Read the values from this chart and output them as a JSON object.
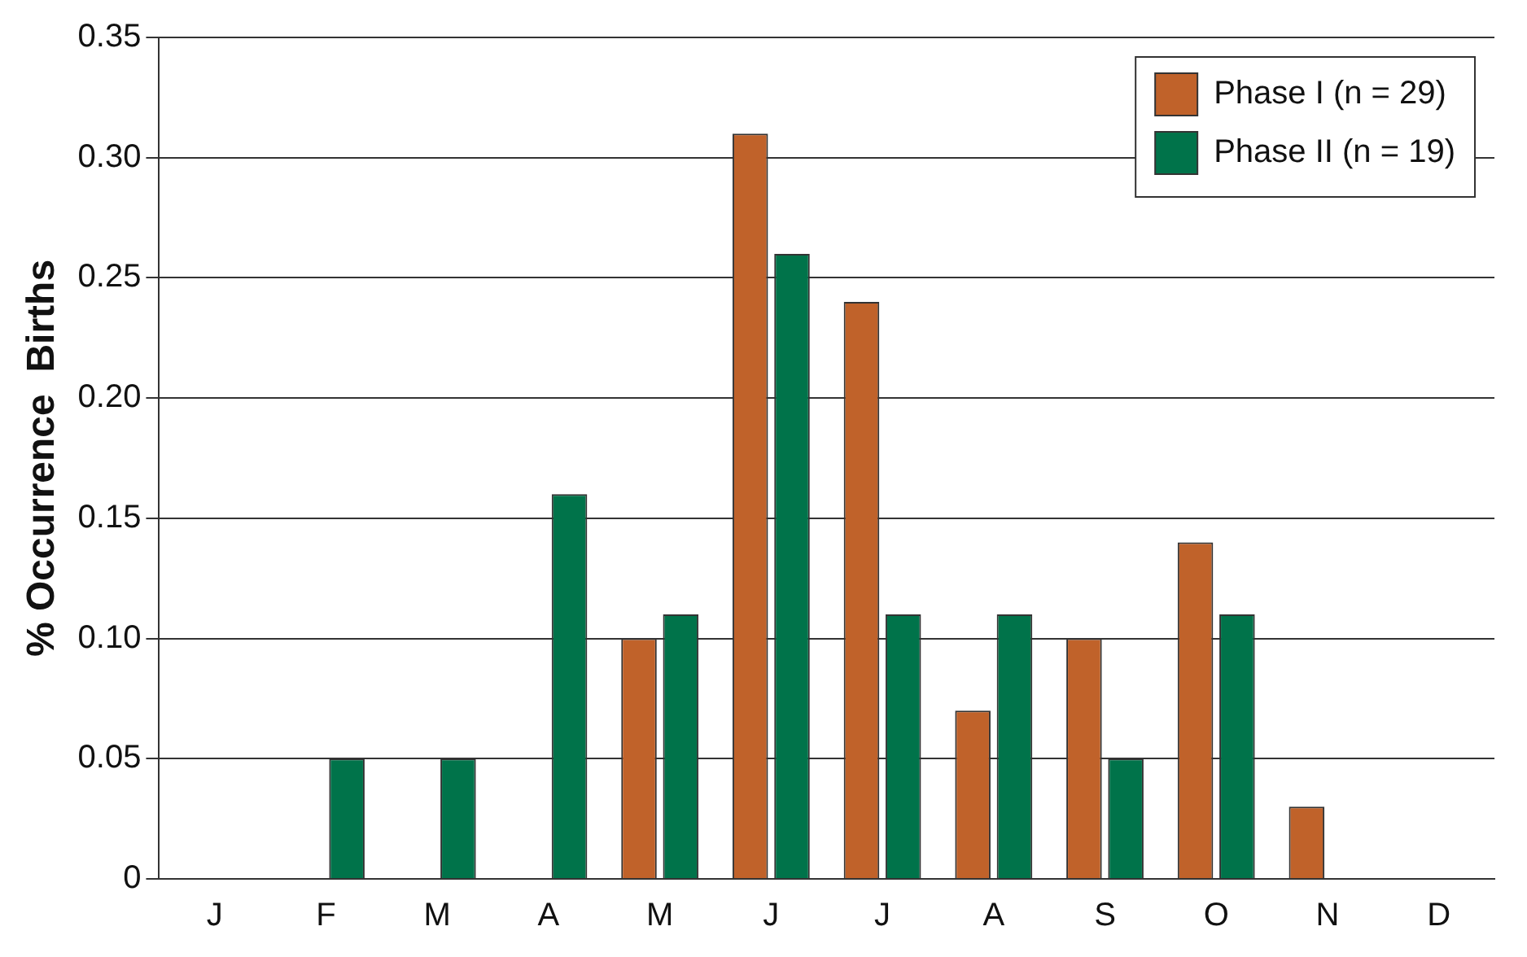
{
  "chart_data": {
    "type": "bar",
    "ylabel": "% Occurrence  Births",
    "categories": [
      "J",
      "F",
      "M",
      "A",
      "M",
      "J",
      "J",
      "A",
      "S",
      "O",
      "N",
      "D"
    ],
    "series": [
      {
        "name": "Phase I (n = 29)",
        "color": "#c0622a",
        "values": [
          0,
          0,
          0,
          0,
          0.1,
          0.31,
          0.24,
          0.07,
          0.1,
          0.14,
          0.03,
          0
        ]
      },
      {
        "name": "Phase II (n = 19)",
        "color": "#00734a",
        "values": [
          0,
          0.05,
          0.05,
          0.16,
          0.11,
          0.26,
          0.11,
          0.11,
          0.05,
          0.11,
          0,
          0
        ]
      }
    ],
    "ylim": [
      0,
      0.35
    ],
    "yticks": [
      0,
      0.05,
      {
        "value": 0.1,
        "label": "0.10"
      },
      0.15,
      {
        "value": 0.2,
        "label": "0.20"
      },
      0.25,
      {
        "value": 0.3,
        "label": "0.30"
      },
      0.35
    ],
    "grid": "y",
    "legend": "top right"
  }
}
